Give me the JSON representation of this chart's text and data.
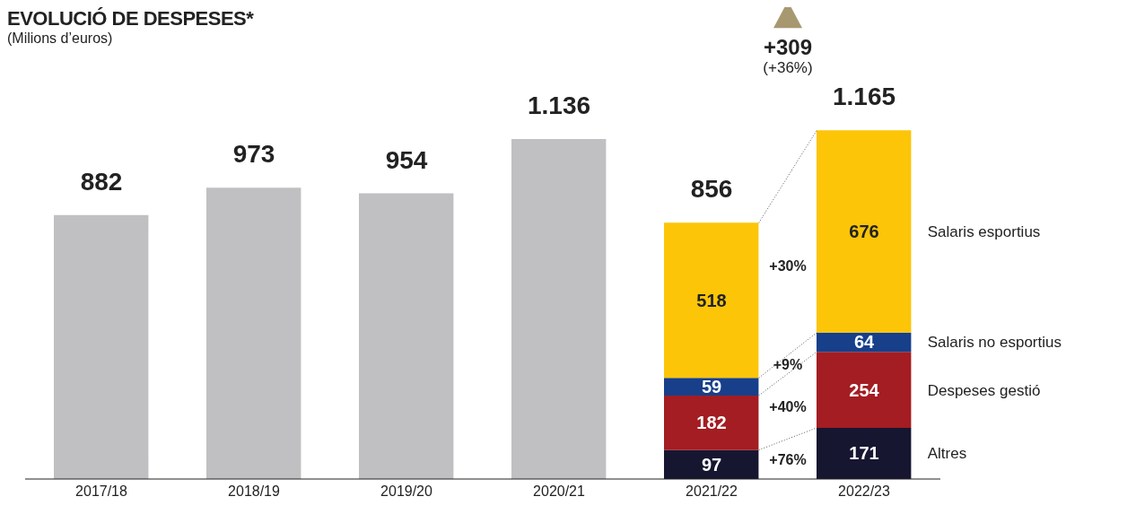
{
  "chart_data": {
    "type": "bar",
    "title": "EVOLUCIÓ DE DESPESES*",
    "subtitle": "(Milions d’euros)",
    "categories": [
      "2017/18",
      "2018/19",
      "2019/20",
      "2020/21",
      "2021/22",
      "2022/23"
    ],
    "stacked": true,
    "series": [
      {
        "color": "#c0bfc1",
        "values": [
          882,
          973,
          954,
          1136,
          null,
          null
        ]
      },
      {
        "name": "Altres",
        "color": "#171631",
        "values": [
          null,
          null,
          null,
          null,
          97,
          171
        ],
        "value_labels": [
          null,
          null,
          null,
          null,
          "97",
          "171"
        ]
      },
      {
        "name": "Despeses gestió",
        "color": "#a31d22",
        "values": [
          null,
          null,
          null,
          null,
          182,
          254
        ],
        "value_labels": [
          null,
          null,
          null,
          null,
          "182",
          "254"
        ]
      },
      {
        "name": "Salaris no esportius",
        "color": "#173f8a",
        "values": [
          null,
          null,
          null,
          null,
          59,
          64
        ],
        "value_labels": [
          null,
          null,
          null,
          null,
          "59",
          "64"
        ]
      },
      {
        "name": "Salaris esportius",
        "color": "#fcc508",
        "values": [
          null,
          null,
          null,
          null,
          518,
          676
        ],
        "value_labels": [
          null,
          null,
          null,
          null,
          "518",
          "676"
        ]
      }
    ],
    "totals": [
      "882",
      "973",
      "954",
      "1.136",
      "856",
      "1.165"
    ],
    "annotations": [
      "+76%",
      "+40%",
      "+9%",
      "+30%",
      "+309",
      "(+36%)"
    ]
  }
}
